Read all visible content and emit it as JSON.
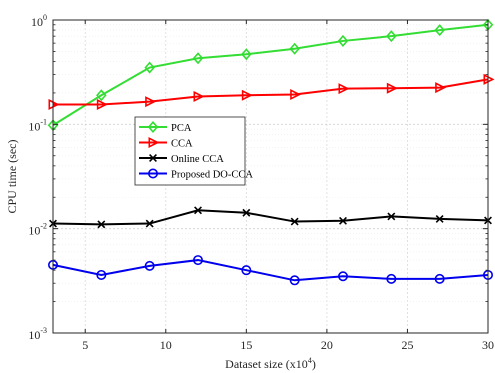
{
  "chart_data": {
    "type": "line",
    "xlabel": "Dataset size (x10",
    "xlabel_sup": "4",
    "xlabel_end": ")",
    "ylabel": "CPU time (sec)",
    "x": [
      3,
      6,
      9,
      12,
      15,
      18,
      21,
      24,
      27,
      30
    ],
    "xlim": [
      3,
      30
    ],
    "ylim": [
      0.001,
      1
    ],
    "yscale": "log",
    "grid": true,
    "legend_position": "center-left",
    "x_ticks": [
      "5",
      "10",
      "15",
      "20",
      "25",
      "30"
    ],
    "y_ticks": [
      {
        "base": "10",
        "exp": "0"
      },
      {
        "base": "10",
        "exp": "-1"
      },
      {
        "base": "10",
        "exp": "-2"
      },
      {
        "base": "10",
        "exp": "-3"
      }
    ],
    "series": [
      {
        "name": "PCA",
        "color": "#33dd33",
        "marker": "diamond",
        "values": [
          0.098,
          0.19,
          0.35,
          0.43,
          0.47,
          0.53,
          0.63,
          0.7,
          0.8,
          0.9
        ]
      },
      {
        "name": "CCA",
        "color": "#ff0000",
        "marker": "triangle-right",
        "values": [
          0.155,
          0.155,
          0.165,
          0.185,
          0.19,
          0.193,
          0.22,
          0.222,
          0.225,
          0.27
        ]
      },
      {
        "name": "Online CCA",
        "color": "#000000",
        "marker": "x",
        "values": [
          0.0112,
          0.011,
          0.0112,
          0.015,
          0.0142,
          0.0117,
          0.0119,
          0.0131,
          0.0124,
          0.012
        ]
      },
      {
        "name": "Proposed DO-CCA",
        "color": "#0000ee",
        "marker": "circle",
        "values": [
          0.0045,
          0.0036,
          0.0044,
          0.005,
          0.004,
          0.0032,
          0.0035,
          0.0033,
          0.0033,
          0.0036
        ]
      }
    ]
  }
}
